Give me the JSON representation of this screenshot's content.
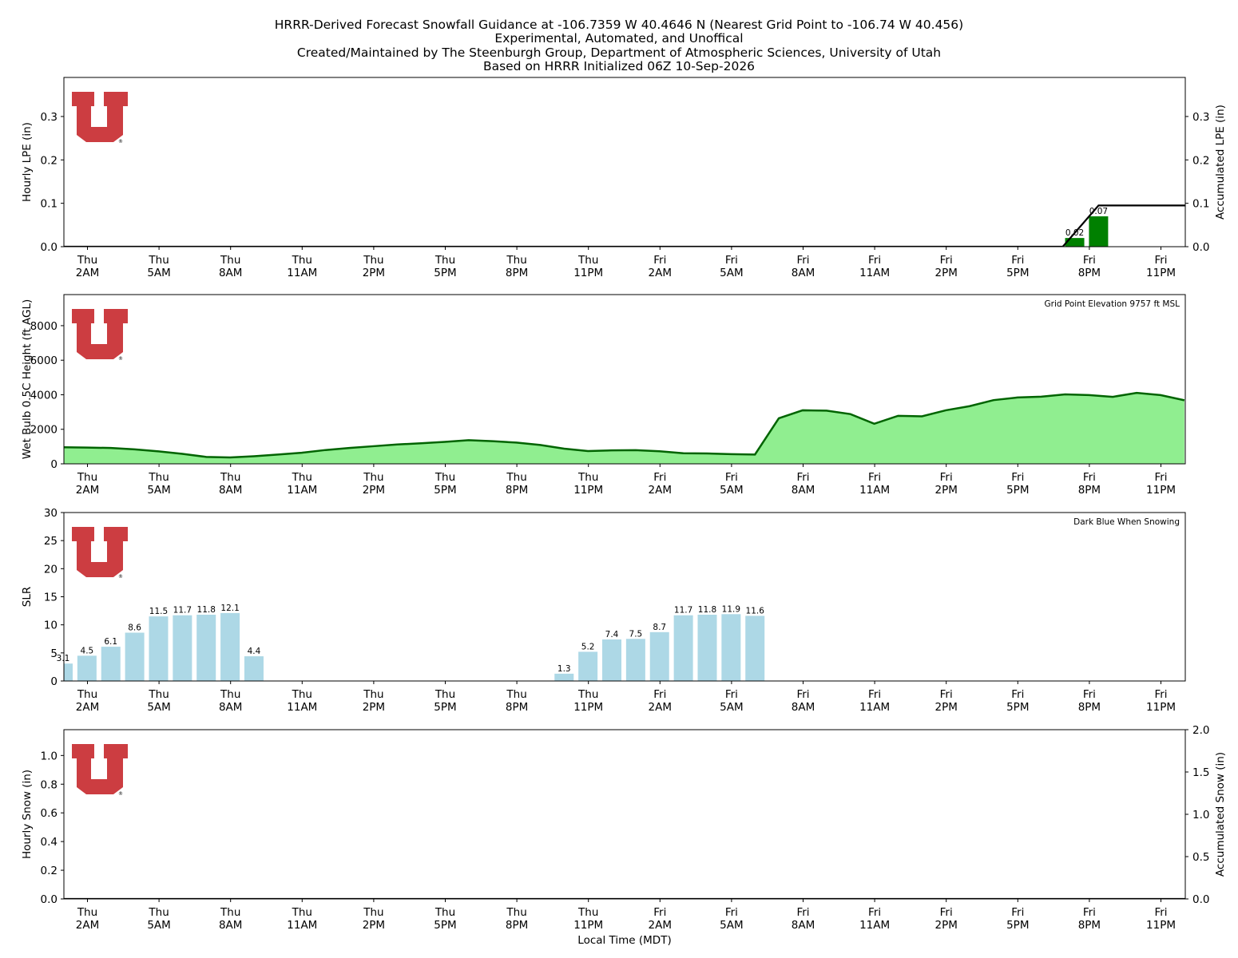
{
  "figure": {
    "title_lines": [
      "HRRR-Derived Forecast Snowfall Guidance at -106.7359 W 40.4646 N (Nearest Grid Point to -106.74 W 40.456)",
      "Experimental, Automated, and Unoffical",
      "Created/Maintained by The Steenburgh Group, Department of Atmospheric Sciences, University of Utah",
      "Based on HRRR Initialized 06Z 10-Sep-2026"
    ],
    "xlabel": "Local Time (MDT)",
    "x_ticks": [
      {
        "day": "Thu",
        "time": "2AM"
      },
      {
        "day": "Thu",
        "time": "5AM"
      },
      {
        "day": "Thu",
        "time": "8AM"
      },
      {
        "day": "Thu",
        "time": "11AM"
      },
      {
        "day": "Thu",
        "time": "2PM"
      },
      {
        "day": "Thu",
        "time": "5PM"
      },
      {
        "day": "Thu",
        "time": "8PM"
      },
      {
        "day": "Thu",
        "time": "11PM"
      },
      {
        "day": "Fri",
        "time": "2AM"
      },
      {
        "day": "Fri",
        "time": "5AM"
      },
      {
        "day": "Fri",
        "time": "8AM"
      },
      {
        "day": "Fri",
        "time": "11AM"
      },
      {
        "day": "Fri",
        "time": "2PM"
      },
      {
        "day": "Fri",
        "time": "5PM"
      },
      {
        "day": "Fri",
        "time": "8PM"
      },
      {
        "day": "Fri",
        "time": "11PM"
      }
    ],
    "logo_text": "®",
    "colors": {
      "lpe_bar": "#008000",
      "accum_line": "#000000",
      "wetbulb_fill": "#90ee90",
      "wetbulb_line": "#006400",
      "slr_bar": "#add8e6",
      "logo": "#cc3d41"
    }
  },
  "chart_data": [
    {
      "type": "bar",
      "panel": "lpe",
      "ylabel": "Hourly LPE (in)",
      "y2label": "Accumulated LPE (in)",
      "ylim": [
        0,
        0.39
      ],
      "yticks": [
        "0.0",
        "0.1",
        "0.2",
        "0.3"
      ],
      "y2lim": [
        0,
        0.39
      ],
      "y2ticks": [
        "0.0",
        "0.1",
        "0.2",
        "0.3"
      ],
      "x_hours": "hourly, 1AM Thu through 12AM Sat (MDT)",
      "bars": [
        {
          "hour_index": 42,
          "value": 0.02,
          "label": "0.02"
        },
        {
          "hour_index": 43,
          "value": 0.07,
          "label": "0.07"
        }
      ],
      "accumulated": [
        {
          "hour_index": 0,
          "value": 0.0
        },
        {
          "hour_index": 41.5,
          "value": 0.0
        },
        {
          "hour_index": 43,
          "value": 0.095
        },
        {
          "hour_index": 47,
          "value": 0.095
        }
      ]
    },
    {
      "type": "area",
      "panel": "wetbulb",
      "ylabel": "Wet Bulb 0.5C Height (ft AGL)",
      "ylim": [
        0,
        9800
      ],
      "yticks": [
        "0",
        "2000",
        "4000",
        "6000",
        "8000"
      ],
      "annotation": "Grid Point Elevation 9757 ft MSL",
      "values": [
        960,
        940,
        920,
        840,
        720,
        580,
        400,
        370,
        440,
        540,
        640,
        800,
        920,
        1020,
        1120,
        1190,
        1270,
        1370,
        1310,
        1230,
        1090,
        880,
        740,
        780,
        790,
        730,
        610,
        600,
        560,
        540,
        2640,
        3100,
        3080,
        2880,
        2320,
        2780,
        2750,
        3100,
        3340,
        3690,
        3840,
        3890,
        4020,
        3980,
        3880,
        4110,
        3980,
        3680
      ]
    },
    {
      "type": "bar",
      "panel": "slr",
      "ylabel": "SLR",
      "ylim": [
        0,
        30
      ],
      "yticks": [
        "0",
        "5",
        "10",
        "15",
        "20",
        "25",
        "30"
      ],
      "annotation": "Dark Blue When Snowing",
      "bars": [
        {
          "hour_index": 0,
          "value": 3.1,
          "label": "3.1"
        },
        {
          "hour_index": 1,
          "value": 4.5,
          "label": "4.5"
        },
        {
          "hour_index": 2,
          "value": 6.1,
          "label": "6.1"
        },
        {
          "hour_index": 3,
          "value": 8.6,
          "label": "8.6"
        },
        {
          "hour_index": 4,
          "value": 11.5,
          "label": "11.5"
        },
        {
          "hour_index": 5,
          "value": 11.7,
          "label": "11.7"
        },
        {
          "hour_index": 6,
          "value": 11.8,
          "label": "11.8"
        },
        {
          "hour_index": 7,
          "value": 12.1,
          "label": "12.1"
        },
        {
          "hour_index": 8,
          "value": 4.4,
          "label": "4.4"
        },
        {
          "hour_index": 21,
          "value": 1.3,
          "label": "1.3"
        },
        {
          "hour_index": 22,
          "value": 5.2,
          "label": "5.2"
        },
        {
          "hour_index": 23,
          "value": 7.4,
          "label": "7.4"
        },
        {
          "hour_index": 24,
          "value": 7.5,
          "label": "7.5"
        },
        {
          "hour_index": 25,
          "value": 8.7,
          "label": "8.7"
        },
        {
          "hour_index": 26,
          "value": 11.7,
          "label": "11.7"
        },
        {
          "hour_index": 27,
          "value": 11.8,
          "label": "11.8"
        },
        {
          "hour_index": 28,
          "value": 11.9,
          "label": "11.9"
        },
        {
          "hour_index": 29,
          "value": 11.6,
          "label": "11.6"
        }
      ]
    },
    {
      "type": "bar",
      "panel": "snow",
      "ylabel": "Hourly Snow (in)",
      "y2label": "Accumulated Snow (in)",
      "ylim": [
        0,
        1.18
      ],
      "yticks": [
        "0.0",
        "0.2",
        "0.4",
        "0.6",
        "0.8",
        "1.0"
      ],
      "y2lim": [
        0,
        2.0
      ],
      "y2ticks": [
        "0.0",
        "0.5",
        "1.0",
        "1.5",
        "2.0"
      ],
      "bars": [],
      "accumulated": [
        {
          "hour_index": 0,
          "value": 0.0
        },
        {
          "hour_index": 47,
          "value": 0.0
        }
      ]
    }
  ]
}
